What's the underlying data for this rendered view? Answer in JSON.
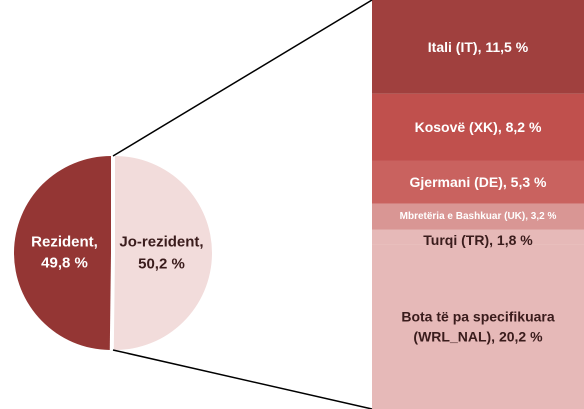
{
  "chart_data": [
    {
      "type": "pie",
      "categories": [
        "Rezident,",
        "Jo-rezident,"
      ],
      "values": [
        49.8,
        50.2
      ],
      "value_labels": [
        "49,8 %",
        "50,2 %"
      ],
      "colors": [
        "#943634",
        "#f2dcdb"
      ]
    },
    {
      "type": "bar",
      "categories": [
        "Itali (IT),",
        "Kosovë (XK),",
        "Gjermani (DE),",
        "Mbretëria e Bashkuar (UK),",
        "Turqi (TR),",
        "Bota të pa specifikuara (WRL_NAL),"
      ],
      "values": [
        11.5,
        8.2,
        5.3,
        3.2,
        1.8,
        20.2
      ],
      "value_labels": [
        "11,5 %",
        "8,2 %",
        "5,3 %",
        "3,2 %",
        "1,8 %",
        "20,2 %"
      ],
      "colors": [
        "#a0403e",
        "#c0504d",
        "#c9625f",
        "#d99694",
        "#e6b9b8",
        "#e6b9b8"
      ]
    }
  ]
}
